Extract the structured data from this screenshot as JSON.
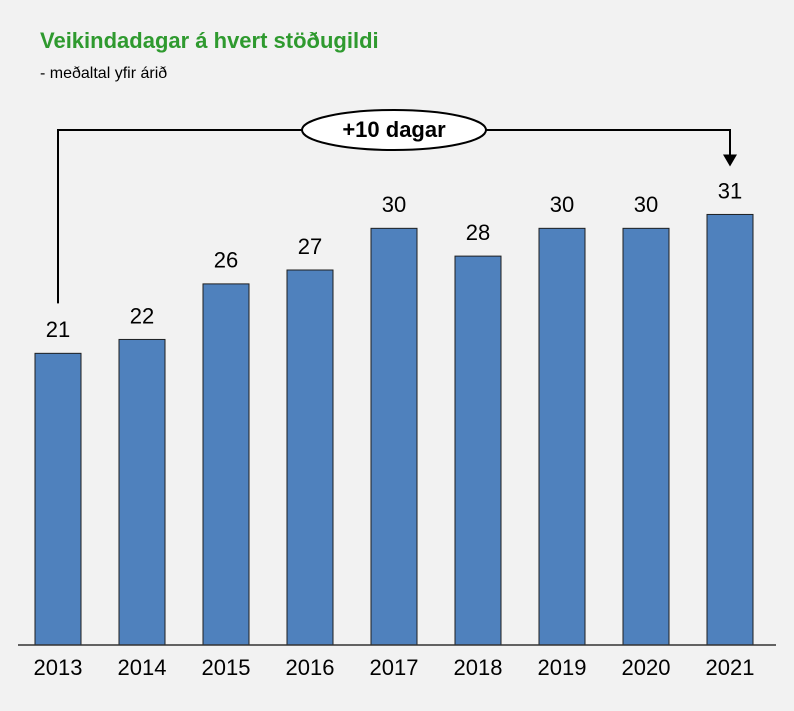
{
  "chart_data": {
    "type": "bar",
    "title": "Veikindadagar á hvert stöðugildi",
    "subtitle": "- meðaltal yfir árið",
    "annotation": "+10 dagar",
    "categories": [
      "2013",
      "2014",
      "2015",
      "2016",
      "2017",
      "2018",
      "2019",
      "2020",
      "2021"
    ],
    "values": [
      21,
      22,
      26,
      27,
      30,
      28,
      30,
      30,
      31
    ],
    "color": "#4f81bd",
    "ylim": [
      0,
      36
    ]
  }
}
